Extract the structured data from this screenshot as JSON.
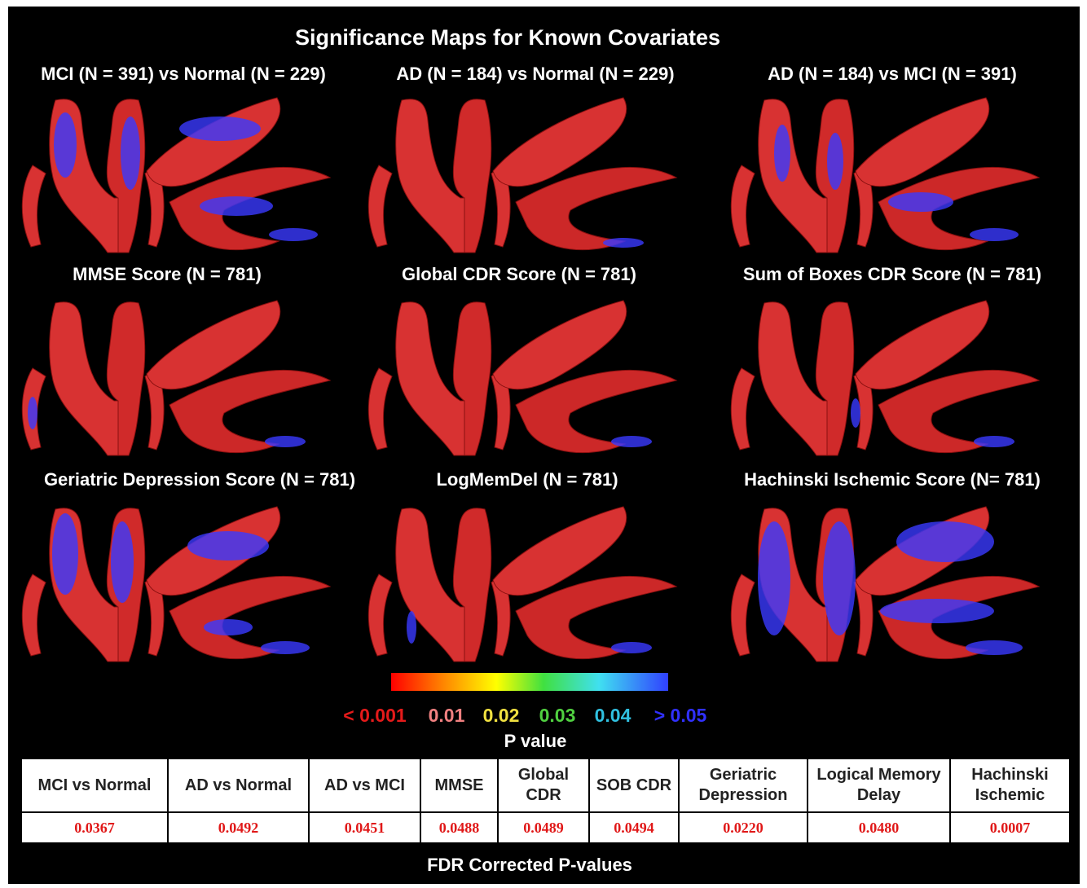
{
  "title": "Significance Maps for Known Covariates",
  "panels": [
    {
      "label": "MCI (N = 391) vs Normal (N = 229)"
    },
    {
      "label": "AD (N = 184) vs Normal (N = 229)"
    },
    {
      "label": "AD (N = 184) vs MCI (N = 391)"
    },
    {
      "label": "MMSE Score (N = 781)"
    },
    {
      "label": "Global CDR Score (N = 781)"
    },
    {
      "label": "Sum of Boxes CDR Score (N = 781)"
    },
    {
      "label": "Geriatric Depression Score  (N = 781)"
    },
    {
      "label": "LogMemDel (N = 781)"
    },
    {
      "label": "Hachinski Ischemic Score (N= 781)"
    }
  ],
  "colorbar": {
    "labels": [
      {
        "text": "< 0.001",
        "color": "#e41a1a"
      },
      {
        "text": "0.01",
        "color": "#f08080"
      },
      {
        "text": "0.02",
        "color": "#f0e040"
      },
      {
        "text": "0.03",
        "color": "#50d040"
      },
      {
        "text": "0.04",
        "color": "#30c0e0"
      },
      {
        "text": "> 0.05",
        "color": "#3030ff"
      }
    ],
    "axis_label": "P value"
  },
  "table": {
    "header": [
      "MCI vs Normal",
      "AD vs Normal",
      "AD vs MCI",
      "MMSE",
      "Global CDR",
      "SOB CDR",
      "Geriatric Depression",
      "Logical Memory Delay",
      "Hachinski Ischemic"
    ],
    "rows": [
      [
        "0.0367",
        "0.0492",
        "0.0451",
        "0.0488",
        "0.0489",
        "0.0494",
        "0.0220",
        "0.0480",
        "0.0007"
      ]
    ]
  },
  "caption": "FDR Corrected P-values"
}
